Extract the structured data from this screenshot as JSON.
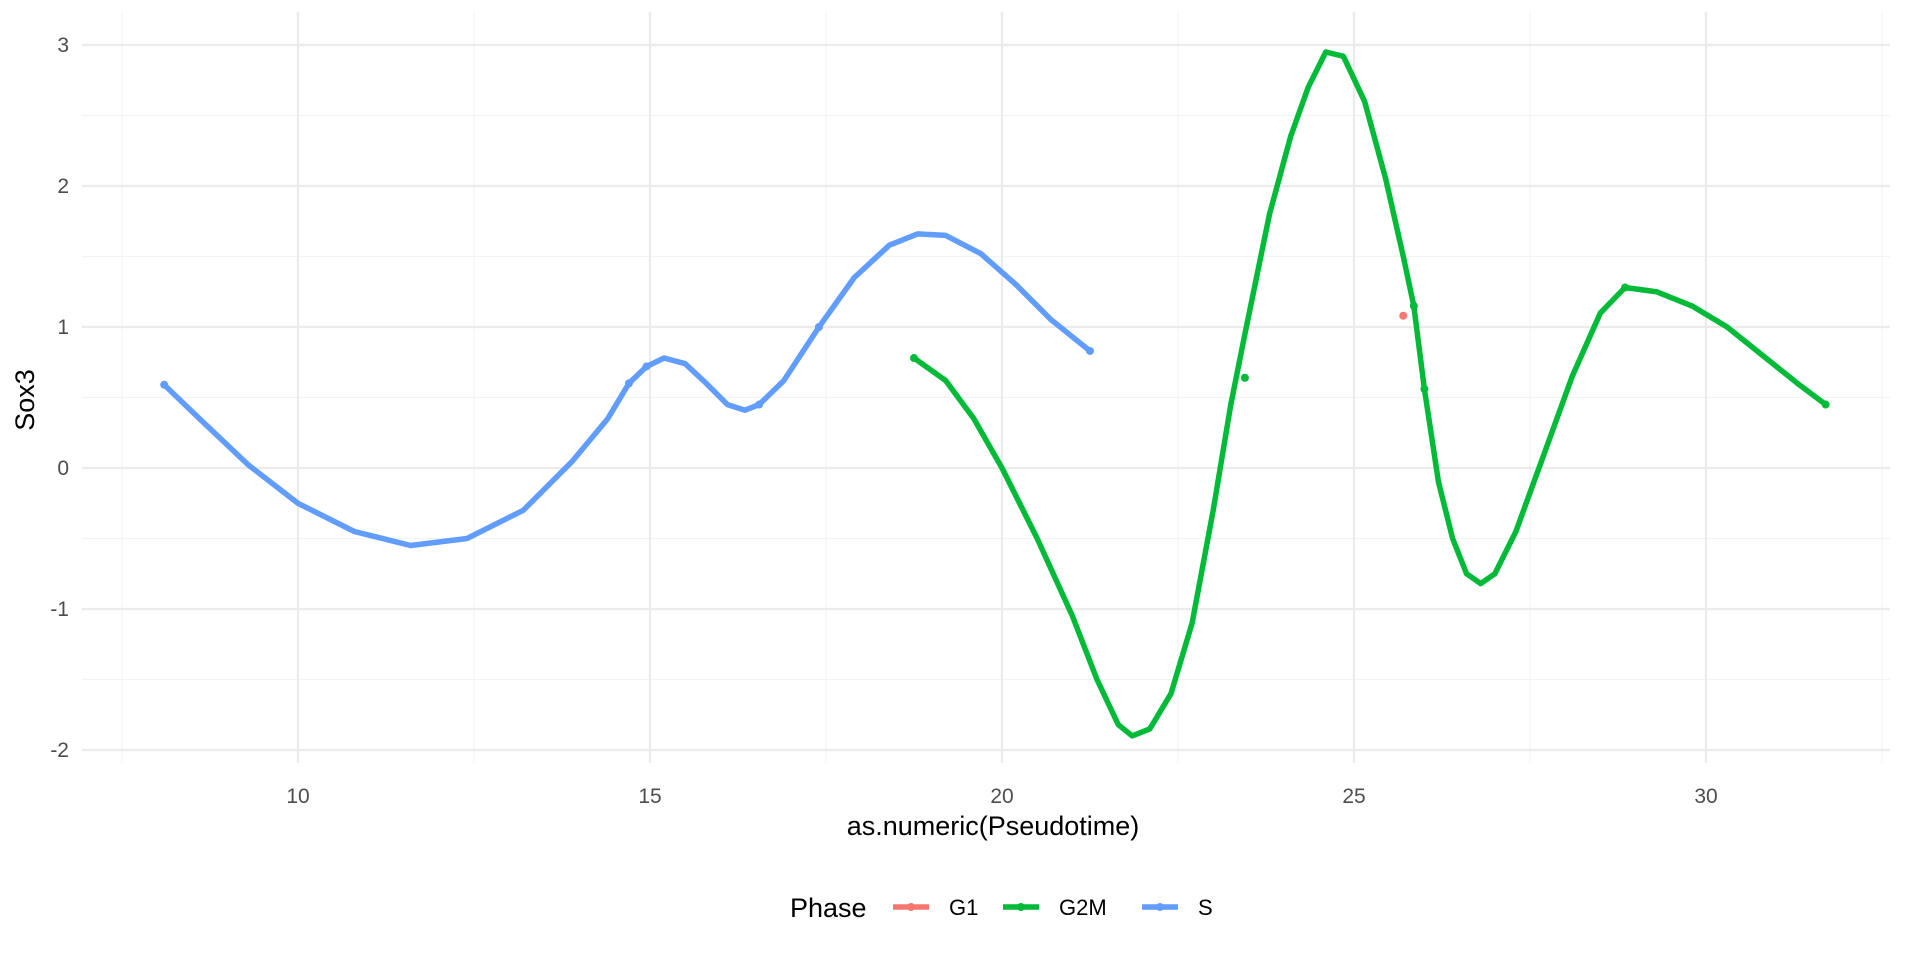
{
  "chart_data": {
    "type": "line",
    "xlabel": "as.numeric(Pseudotime)",
    "ylabel": "Sox3",
    "xlim": [
      7.5,
      32.5
    ],
    "ylim": [
      -2.15,
      3.15
    ],
    "x_ticks": [
      10,
      15,
      20,
      25,
      30
    ],
    "x_tick_labels": [
      "10",
      "15",
      "20",
      "25",
      "30"
    ],
    "x_minor_ticks": [
      7.5,
      12.5,
      17.5,
      22.5,
      27.5,
      32.5
    ],
    "y_ticks": [
      -2,
      -1,
      0,
      1,
      2,
      3
    ],
    "y_tick_labels": [
      "-2",
      "-1",
      "0",
      "1",
      "2",
      "3"
    ],
    "y_minor_ticks": [
      -1.5,
      -0.5,
      0.5,
      1.5,
      2.5
    ],
    "grid": true,
    "legend": {
      "title": "Phase",
      "position": "bottom",
      "entries": [
        "G1",
        "G2M",
        "S"
      ]
    },
    "series": [
      {
        "name": "G1",
        "color": "#F8766D",
        "points": [
          [
            25.7,
            1.08
          ]
        ],
        "curve": []
      },
      {
        "name": "G2M",
        "color": "#00BA38",
        "points": [
          [
            18.75,
            0.78
          ],
          [
            23.45,
            0.64
          ],
          [
            25.85,
            1.15
          ],
          [
            26.0,
            0.56
          ],
          [
            28.85,
            1.28
          ],
          [
            31.7,
            0.45
          ]
        ],
        "curve": [
          [
            18.75,
            0.78
          ],
          [
            19.2,
            0.62
          ],
          [
            19.6,
            0.35
          ],
          [
            20.0,
            0.0
          ],
          [
            20.5,
            -0.5
          ],
          [
            21.0,
            -1.05
          ],
          [
            21.35,
            -1.5
          ],
          [
            21.65,
            -1.82
          ],
          [
            21.85,
            -1.9
          ],
          [
            22.1,
            -1.85
          ],
          [
            22.4,
            -1.6
          ],
          [
            22.7,
            -1.1
          ],
          [
            23.0,
            -0.3
          ],
          [
            23.25,
            0.45
          ],
          [
            23.45,
            0.95
          ],
          [
            23.8,
            1.8
          ],
          [
            24.1,
            2.35
          ],
          [
            24.35,
            2.7
          ],
          [
            24.6,
            2.95
          ],
          [
            24.85,
            2.92
          ],
          [
            25.15,
            2.6
          ],
          [
            25.45,
            2.05
          ],
          [
            25.7,
            1.5
          ],
          [
            25.85,
            1.15
          ],
          [
            26.0,
            0.56
          ],
          [
            26.2,
            -0.1
          ],
          [
            26.4,
            -0.5
          ],
          [
            26.6,
            -0.75
          ],
          [
            26.8,
            -0.82
          ],
          [
            27.0,
            -0.75
          ],
          [
            27.3,
            -0.45
          ],
          [
            27.7,
            0.1
          ],
          [
            28.1,
            0.65
          ],
          [
            28.5,
            1.1
          ],
          [
            28.85,
            1.28
          ],
          [
            29.3,
            1.25
          ],
          [
            29.8,
            1.15
          ],
          [
            30.3,
            1.0
          ],
          [
            30.8,
            0.8
          ],
          [
            31.3,
            0.6
          ],
          [
            31.7,
            0.45
          ]
        ]
      },
      {
        "name": "S",
        "color": "#619CFF",
        "points": [
          [
            8.1,
            0.59
          ],
          [
            14.7,
            0.6
          ],
          [
            14.95,
            0.72
          ],
          [
            16.55,
            0.45
          ],
          [
            17.4,
            1.0
          ],
          [
            21.25,
            0.83
          ]
        ],
        "curve": [
          [
            8.1,
            0.59
          ],
          [
            8.6,
            0.35
          ],
          [
            9.3,
            0.02
          ],
          [
            10.0,
            -0.25
          ],
          [
            10.8,
            -0.45
          ],
          [
            11.6,
            -0.55
          ],
          [
            12.4,
            -0.5
          ],
          [
            13.2,
            -0.3
          ],
          [
            13.9,
            0.05
          ],
          [
            14.4,
            0.35
          ],
          [
            14.7,
            0.6
          ],
          [
            14.95,
            0.72
          ],
          [
            15.2,
            0.78
          ],
          [
            15.5,
            0.74
          ],
          [
            15.8,
            0.6
          ],
          [
            16.1,
            0.45
          ],
          [
            16.35,
            0.41
          ],
          [
            16.55,
            0.45
          ],
          [
            16.9,
            0.62
          ],
          [
            17.4,
            1.0
          ],
          [
            17.9,
            1.35
          ],
          [
            18.4,
            1.58
          ],
          [
            18.8,
            1.66
          ],
          [
            19.2,
            1.65
          ],
          [
            19.7,
            1.52
          ],
          [
            20.2,
            1.3
          ],
          [
            20.7,
            1.05
          ],
          [
            21.25,
            0.83
          ]
        ]
      }
    ]
  }
}
